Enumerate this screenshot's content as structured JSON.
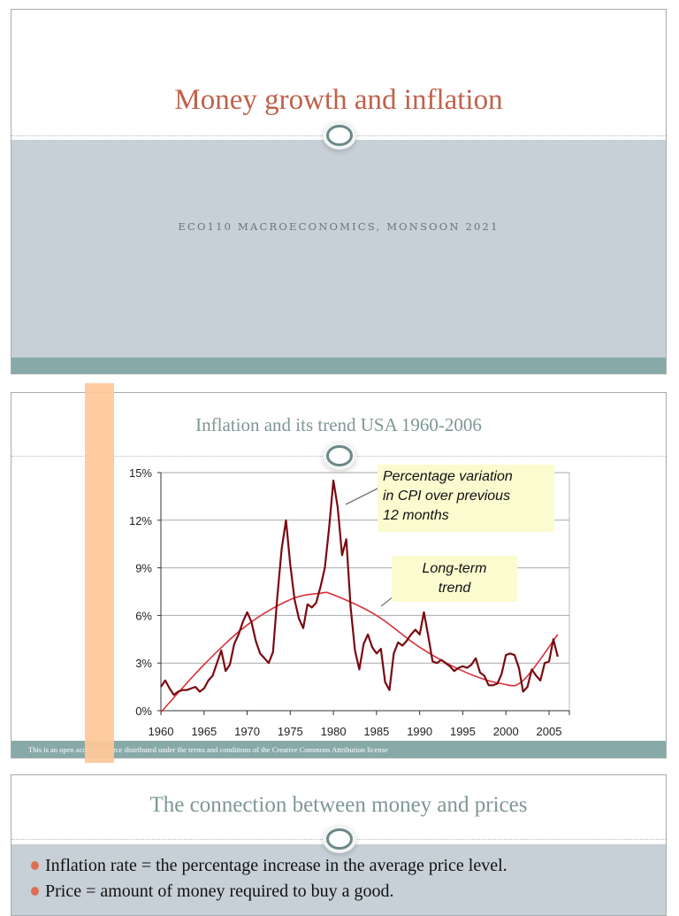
{
  "slides": [
    {
      "title": "Money growth and inflation",
      "subtitle": "ECO110 MACROECONOMICS, MONSOON 2021"
    },
    {
      "title": "Inflation and its trend USA 1960-2006",
      "footer": "This is an open access resource distributed under the terms and conditions of the Creative Commons Attribution license",
      "annotations": {
        "cpi": [
          "Percentage variation",
          "in CPI over previous",
          "12 months"
        ],
        "trend": [
          "Long-term",
          "trend"
        ]
      }
    },
    {
      "title": "The connection between money and prices",
      "bullets": [
        "Inflation rate = the percentage increase in the average price level.",
        "Price = amount of money required to buy a good."
      ]
    }
  ],
  "colors": {
    "title_accent": "#c0614b",
    "heading_teal": "#7d9795",
    "band": "#c6d0d6",
    "teal_bar": "#87aaa9",
    "bullet": "#dd6e54",
    "cpi_line": "#7a0a10",
    "trend_line": "#d9303a",
    "annotation_bg": "#fbfbd0",
    "orange_marker": "#ffc897"
  },
  "chart_data": {
    "type": "line",
    "title": "Inflation and its trend USA 1960-2006",
    "xlabel": "",
    "ylabel": "",
    "x_ticks": [
      "1960",
      "1965",
      "1970",
      "1975",
      "1980",
      "1985",
      "1990",
      "1995",
      "2000",
      "2005"
    ],
    "y_ticks": [
      "0%",
      "3%",
      "6%",
      "9%",
      "12%",
      "15%"
    ],
    "ylim": [
      0,
      15
    ],
    "xlim": [
      1960,
      2006.5
    ],
    "grid": "horizontal",
    "series": [
      {
        "name": "Percentage variation in CPI over previous 12 months",
        "x": [
          1960,
          1960.5,
          1961,
          1961.5,
          1962,
          1962.5,
          1963,
          1963.5,
          1964,
          1964.5,
          1965,
          1965.5,
          1966,
          1966.5,
          1967,
          1967.5,
          1968,
          1968.5,
          1969,
          1969.5,
          1970,
          1970.5,
          1971,
          1971.5,
          1972,
          1972.5,
          1973,
          1973.5,
          1974,
          1974.5,
          1975,
          1975.5,
          1976,
          1976.5,
          1977,
          1977.5,
          1978,
          1978.5,
          1979,
          1979.5,
          1980,
          1980.5,
          1981,
          1981.5,
          1982,
          1982.5,
          1983,
          1983.5,
          1984,
          1984.5,
          1985,
          1985.5,
          1986,
          1986.5,
          1987,
          1987.5,
          1988,
          1988.5,
          1989,
          1989.5,
          1990,
          1990.5,
          1991,
          1991.5,
          1992,
          1992.5,
          1993,
          1993.5,
          1994,
          1994.5,
          1995,
          1995.5,
          1996,
          1996.5,
          1997,
          1997.5,
          1998,
          1998.5,
          1999,
          1999.5,
          2000,
          2000.5,
          2001,
          2001.5,
          2002,
          2002.5,
          2003,
          2003.5,
          2004,
          2004.5,
          2005,
          2005.5,
          2006
        ],
        "values": [
          1.5,
          1.9,
          1.4,
          1.0,
          1.2,
          1.3,
          1.3,
          1.4,
          1.5,
          1.2,
          1.4,
          1.9,
          2.2,
          3.0,
          3.8,
          2.5,
          2.9,
          4.2,
          4.8,
          5.6,
          6.2,
          5.6,
          4.4,
          3.6,
          3.3,
          3.0,
          3.7,
          7.2,
          10.2,
          12.0,
          9.2,
          7.0,
          5.8,
          5.2,
          6.7,
          6.5,
          6.8,
          7.8,
          9.0,
          11.5,
          14.5,
          12.8,
          9.8,
          10.8,
          6.5,
          3.8,
          2.6,
          4.2,
          4.8,
          4.0,
          3.6,
          3.9,
          1.8,
          1.3,
          3.6,
          4.3,
          4.1,
          4.4,
          4.8,
          5.1,
          4.8,
          6.2,
          4.7,
          3.1,
          3.0,
          3.2,
          3.0,
          2.8,
          2.5,
          2.7,
          2.8,
          2.7,
          2.9,
          3.3,
          2.4,
          2.2,
          1.6,
          1.6,
          1.7,
          2.3,
          3.5,
          3.6,
          3.5,
          2.7,
          1.2,
          1.5,
          2.6,
          2.2,
          1.9,
          3.0,
          3.1,
          4.5,
          3.4
        ]
      },
      {
        "name": "Long-term trend",
        "x": [
          1960,
          1965,
          1970,
          1975,
          1978.5,
          1980,
          1985,
          1990,
          1995,
          1999.5,
          2002,
          2006
        ],
        "values": [
          -0.1,
          2.9,
          5.4,
          7.0,
          7.4,
          7.3,
          6.0,
          4.0,
          2.5,
          1.7,
          1.9,
          4.8
        ]
      }
    ]
  }
}
